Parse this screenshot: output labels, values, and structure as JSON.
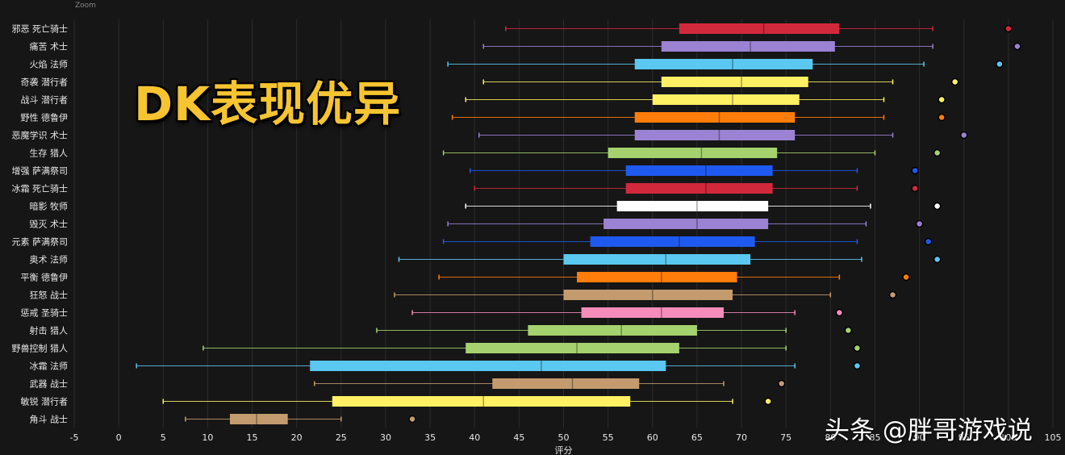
{
  "zoom_label": "Zoom",
  "overlay_title": "DK表现优异",
  "watermark": "头条 @胖哥游戏说",
  "colors": {
    "background": "#161616",
    "grid": "#2c2c2c",
    "text": "#e8e8e8"
  },
  "chart_data": {
    "type": "box",
    "orientation": "horizontal",
    "xlabel": "评分",
    "xlim": [
      -5,
      105
    ],
    "x_ticks": [
      -5,
      0,
      5,
      10,
      15,
      20,
      25,
      30,
      35,
      40,
      45,
      50,
      55,
      60,
      65,
      70,
      75,
      80,
      85,
      90,
      95,
      100,
      105
    ],
    "grid": true,
    "categories": [
      "邪恶 死亡骑士",
      "痛苦 术士",
      "火焰 法师",
      "奇袭 潜行者",
      "战斗 潜行者",
      "野性 德鲁伊",
      "恶魔学识 术士",
      "生存 猎人",
      "增强 萨满祭司",
      "冰霜 死亡骑士",
      "暗影 牧师",
      "毁灭 术士",
      "元素 萨满祭司",
      "奥术 法师",
      "平衡 德鲁伊",
      "狂怒 战士",
      "惩戒 圣骑士",
      "射击 猎人",
      "野兽控制 猎人",
      "冰霜 法师",
      "武器 战士",
      "敏锐 潜行者",
      "角斗 战士"
    ],
    "boxes": [
      {
        "label": "邪恶 死亡骑士",
        "min": 43.5,
        "q1": 63,
        "median": 72.5,
        "q3": 81,
        "max": 91.5,
        "outlier": 100,
        "color": "#d2283c"
      },
      {
        "label": "痛苦 术士",
        "min": 41,
        "q1": 61,
        "median": 71,
        "q3": 80.5,
        "max": 91.5,
        "outlier": 101,
        "color": "#9b82d2"
      },
      {
        "label": "火焰 法师",
        "min": 37,
        "q1": 58,
        "median": 69,
        "q3": 78,
        "max": 90.5,
        "outlier": 99,
        "color": "#5ac8f0"
      },
      {
        "label": "奇袭 潜行者",
        "min": 41,
        "q1": 61,
        "median": 70,
        "q3": 77.5,
        "max": 87,
        "outlier": 94,
        "color": "#fff064"
      },
      {
        "label": "战斗 潜行者",
        "min": 39,
        "q1": 60,
        "median": 69,
        "q3": 76.5,
        "max": 86,
        "outlier": 92.5,
        "color": "#fff064"
      },
      {
        "label": "野性 德鲁伊",
        "min": 37.5,
        "q1": 58,
        "median": 67.5,
        "q3": 76,
        "max": 86,
        "outlier": 92.5,
        "color": "#ff7d0a"
      },
      {
        "label": "恶魔学识 术士",
        "min": 40.5,
        "q1": 58,
        "median": 67.5,
        "q3": 76,
        "max": 87,
        "outlier": 95,
        "color": "#9b82d2"
      },
      {
        "label": "生存 猎人",
        "min": 36.5,
        "q1": 55,
        "median": 65.5,
        "q3": 74,
        "max": 85,
        "outlier": 92,
        "color": "#a5d26e"
      },
      {
        "label": "增强 萨满祭司",
        "min": 39.5,
        "q1": 57,
        "median": 66,
        "q3": 73.5,
        "max": 83,
        "outlier": 89.5,
        "color": "#1e5af0"
      },
      {
        "label": "冰霜 死亡骑士",
        "min": 40,
        "q1": 57,
        "median": 66,
        "q3": 73.5,
        "max": 83,
        "outlier": 89.5,
        "color": "#d2283c"
      },
      {
        "label": "暗影 牧师",
        "min": 39,
        "q1": 56,
        "median": 65,
        "q3": 73,
        "max": 84.5,
        "outlier": 92,
        "color": "#ffffff"
      },
      {
        "label": "毁灭 术士",
        "min": 37,
        "q1": 54.5,
        "median": 65,
        "q3": 73,
        "max": 84,
        "outlier": 90,
        "color": "#9b82d2"
      },
      {
        "label": "元素 萨满祭司",
        "min": 36.5,
        "q1": 53,
        "median": 63,
        "q3": 71.5,
        "max": 83,
        "outlier": 91,
        "color": "#1e5af0"
      },
      {
        "label": "奥术 法师",
        "min": 31.5,
        "q1": 50,
        "median": 61.5,
        "q3": 71,
        "max": 83.5,
        "outlier": 92,
        "color": "#5ac8f0"
      },
      {
        "label": "平衡 德鲁伊",
        "min": 36,
        "q1": 51.5,
        "median": 61,
        "q3": 69.5,
        "max": 81,
        "outlier": 88.5,
        "color": "#ff7d0a"
      },
      {
        "label": "狂怒 战士",
        "min": 31,
        "q1": 50,
        "median": 60,
        "q3": 69,
        "max": 80,
        "outlier": 87,
        "color": "#c39b6e"
      },
      {
        "label": "惩戒 圣骑士",
        "min": 33,
        "q1": 52,
        "median": 61,
        "q3": 68,
        "max": 76,
        "outlier": 81,
        "color": "#f58cba"
      },
      {
        "label": "射击 猎人",
        "min": 29,
        "q1": 46,
        "median": 56.5,
        "q3": 65,
        "max": 75,
        "outlier": 82,
        "color": "#a5d26e"
      },
      {
        "label": "野兽控制 猎人",
        "min": 9.5,
        "q1": 39,
        "median": 51.5,
        "q3": 63,
        "max": 75,
        "outlier": 83,
        "color": "#a5d26e"
      },
      {
        "label": "冰霜 法师",
        "min": 2,
        "q1": 21.5,
        "median": 47.5,
        "q3": 61.5,
        "max": 76,
        "outlier": 83,
        "color": "#5ac8f0"
      },
      {
        "label": "武器 战士",
        "min": 22,
        "q1": 42,
        "median": 51,
        "q3": 58.5,
        "max": 68,
        "outlier": 74.5,
        "color": "#c39b6e"
      },
      {
        "label": "敏锐 潜行者",
        "min": 5,
        "q1": 24,
        "median": 41,
        "q3": 57.5,
        "max": 69,
        "outlier": 73,
        "color": "#fff064"
      },
      {
        "label": "角斗 战士",
        "min": 7.5,
        "q1": 12.5,
        "median": 15.5,
        "q3": 19,
        "max": 25,
        "outlier": 33,
        "color": "#c39b6e"
      }
    ]
  }
}
